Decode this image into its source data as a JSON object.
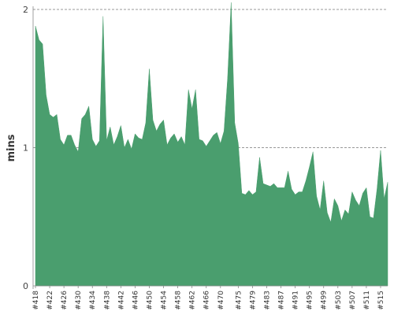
{
  "chart_data": {
    "type": "area",
    "ylabel": "mins",
    "ylim": [
      0,
      2.0
    ],
    "yticks": [
      0,
      1,
      2
    ],
    "color": "#4a9e6e",
    "gridline_color": "#777777",
    "grid": "horizontal-dashed",
    "x": [
      "#418",
      "#419",
      "#420",
      "#421",
      "#422",
      "#423",
      "#424",
      "#425",
      "#426",
      "#427",
      "#428",
      "#429",
      "#430",
      "#431",
      "#432",
      "#433",
      "#434",
      "#435",
      "#436",
      "#437",
      "#438",
      "#439",
      "#440",
      "#441",
      "#442",
      "#443",
      "#444",
      "#445",
      "#446",
      "#447",
      "#448",
      "#449",
      "#450",
      "#451",
      "#452",
      "#453",
      "#454",
      "#455",
      "#456",
      "#457",
      "#458",
      "#459",
      "#460",
      "#461",
      "#462",
      "#463",
      "#464",
      "#465",
      "#466",
      "#467",
      "#468",
      "#469",
      "#470",
      "#471",
      "#472",
      "#473",
      "#474",
      "#475",
      "#476",
      "#477",
      "#478",
      "#479",
      "#480",
      "#481",
      "#482",
      "#483",
      "#484",
      "#485",
      "#486",
      "#487",
      "#488",
      "#489",
      "#490",
      "#491",
      "#492",
      "#493",
      "#494",
      "#495",
      "#496",
      "#497",
      "#498",
      "#499",
      "#500",
      "#501",
      "#502",
      "#503",
      "#504",
      "#505",
      "#506",
      "#507",
      "#508",
      "#509",
      "#510",
      "#511",
      "#512",
      "#513",
      "#514",
      "#515",
      "#516",
      "#517"
    ],
    "values": [
      1.88,
      1.78,
      1.75,
      1.38,
      1.24,
      1.22,
      1.24,
      1.06,
      1.02,
      1.09,
      1.09,
      1.02,
      0.97,
      1.21,
      1.24,
      1.3,
      1.06,
      1.01,
      1.05,
      1.95,
      1.05,
      1.15,
      1.02,
      1.08,
      1.16,
      1.0,
      1.06,
      0.99,
      1.1,
      1.07,
      1.06,
      1.18,
      1.57,
      1.2,
      1.12,
      1.17,
      1.2,
      1.02,
      1.07,
      1.1,
      1.04,
      1.08,
      1.02,
      1.42,
      1.28,
      1.42,
      1.06,
      1.05,
      1.01,
      1.05,
      1.09,
      1.11,
      1.03,
      1.12,
      1.5,
      2.05,
      1.18,
      1.03,
      0.67,
      0.66,
      0.69,
      0.66,
      0.68,
      0.93,
      0.74,
      0.73,
      0.72,
      0.74,
      0.71,
      0.71,
      0.71,
      0.83,
      0.7,
      0.66,
      0.68,
      0.68,
      0.76,
      0.86,
      0.97,
      0.65,
      0.55,
      0.76,
      0.53,
      0.46,
      0.63,
      0.58,
      0.47,
      0.55,
      0.52,
      0.68,
      0.62,
      0.58,
      0.67,
      0.71,
      0.5,
      0.49,
      0.7,
      0.98,
      0.63,
      0.75
    ],
    "xtick_labels": [
      "#418",
      "#422",
      "#426",
      "#430",
      "#434",
      "#438",
      "#442",
      "#446",
      "#450",
      "#454",
      "#458",
      "#462",
      "#466",
      "#470",
      "#475",
      "#479",
      "#483",
      "#487",
      "#491",
      "#495",
      "#499",
      "#503",
      "#507",
      "#511",
      "#515"
    ]
  }
}
